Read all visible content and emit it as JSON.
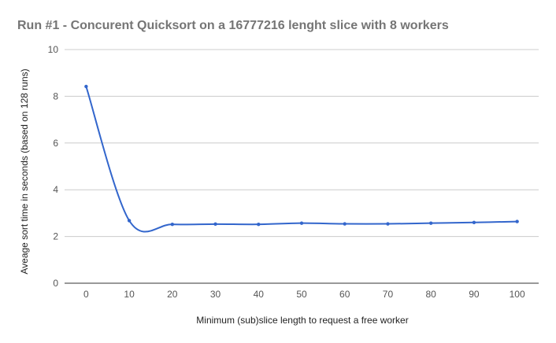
{
  "chart_data": {
    "type": "line",
    "title": "Run #1 - Concurent Quicksort on a 16777216 lenght slice with 8 workers",
    "xlabel": "Minimum (sub)slice length to request a free worker",
    "ylabel": "Aveage sort time in seconds (based on 128 runs)",
    "x": [
      0,
      10,
      20,
      30,
      40,
      50,
      60,
      70,
      80,
      90,
      100
    ],
    "series": [
      {
        "values": [
          8.42,
          2.68,
          2.52,
          2.53,
          2.52,
          2.57,
          2.54,
          2.54,
          2.57,
          2.6,
          2.64
        ]
      }
    ],
    "xticks": [
      "0",
      "10",
      "20",
      "30",
      "40",
      "50",
      "60",
      "70",
      "80",
      "90",
      "100"
    ],
    "yticks": [
      "0",
      "2",
      "4",
      "6",
      "8",
      "10"
    ],
    "ylim": [
      0,
      10
    ],
    "xlim": [
      -5,
      105
    ],
    "grid": true,
    "legend": "none",
    "colors": {
      "line": "#3366cc",
      "grid": "#cccccc",
      "baseline": "#333333",
      "title": "#757575"
    }
  }
}
